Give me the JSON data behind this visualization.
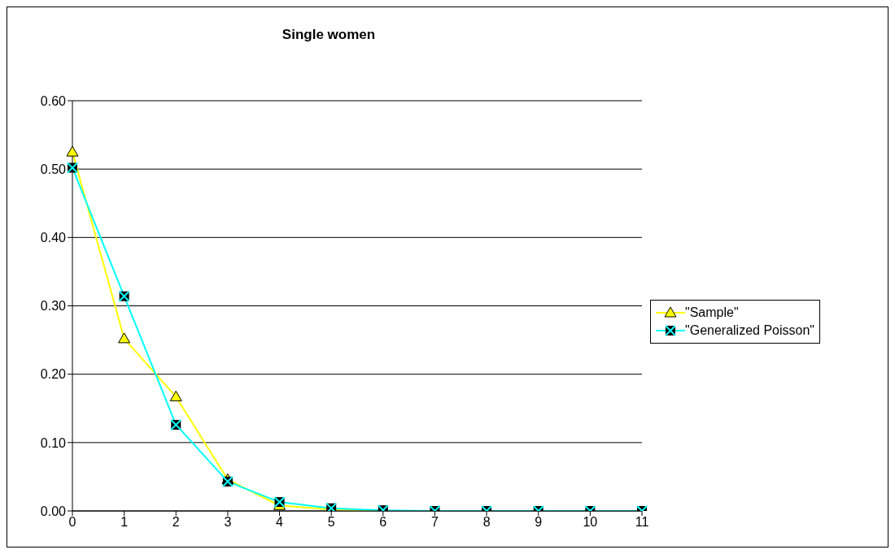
{
  "chart_data": {
    "type": "line",
    "title": "Single women",
    "categories": [
      "0",
      "1",
      "2",
      "3",
      "4",
      "5",
      "6",
      "7",
      "8",
      "9",
      "10",
      "11"
    ],
    "series": [
      {
        "name": "\"Sample\"",
        "color": "#ffff00",
        "marker": "triangle",
        "values": [
          0.525,
          0.252,
          0.167,
          0.046,
          0.008,
          0.002,
          0,
          null,
          null,
          null,
          null,
          null
        ]
      },
      {
        "name": "\"Generalized Poisson\"",
        "color": "#00ffff",
        "marker": "cross",
        "values": [
          0.502,
          0.314,
          0.126,
          0.043,
          0.013,
          0.004,
          0.001,
          0,
          0,
          0,
          0,
          0
        ]
      }
    ],
    "ylim": [
      0,
      0.6
    ],
    "yticks": [
      {
        "value": 0,
        "label": "0.00"
      },
      {
        "value": 0.1,
        "label": "0.10"
      },
      {
        "value": 0.2,
        "label": "0.20"
      },
      {
        "value": 0.3,
        "label": "0.30"
      },
      {
        "value": 0.4,
        "label": "0.40"
      },
      {
        "value": 0.5,
        "label": "0.50"
      },
      {
        "value": 0.6,
        "label": "0.60"
      }
    ],
    "grid": "y",
    "legend": "right",
    "line_style": "solid"
  }
}
